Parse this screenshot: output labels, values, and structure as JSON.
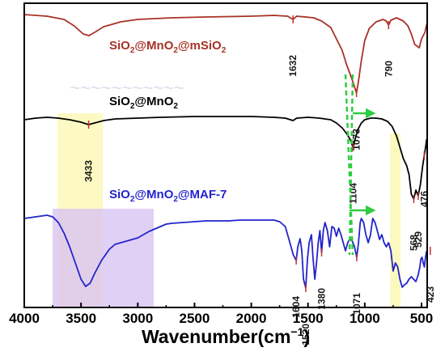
{
  "chart_data": {
    "type": "line",
    "title": "",
    "xlabel": "Wavenumber(cm",
    "xlabel_sup": "−1",
    "xlabel_close": ")",
    "ylabel": "",
    "x_reversed": true,
    "xlim": [
      4000,
      450
    ],
    "xticks": [
      4000,
      3500,
      3000,
      2500,
      2000,
      1500,
      1000,
      500
    ],
    "xtick_labels": [
      "4000",
      "3500",
      "3000",
      "2500",
      "2000",
      "1500",
      "1000",
      "500"
    ],
    "grid": false,
    "series": [
      {
        "name_parts": [
          {
            "t": "SiO",
            "sub": false
          },
          {
            "t": "2",
            "sub": true
          },
          {
            "t": "@MnO",
            "sub": false
          },
          {
            "t": "2",
            "sub": true
          },
          {
            "t": "@mSiO",
            "sub": false
          },
          {
            "t": "2",
            "sub": true
          }
        ],
        "color": "#a83228",
        "points": [
          [
            4000,
            18
          ],
          [
            3800,
            20
          ],
          [
            3650,
            24
          ],
          [
            3560,
            32
          ],
          [
            3480,
            42
          ],
          [
            3430,
            44
          ],
          [
            3380,
            40
          ],
          [
            3300,
            33
          ],
          [
            3150,
            27
          ],
          [
            3000,
            24
          ],
          [
            2700,
            22
          ],
          [
            2400,
            21
          ],
          [
            2000,
            20
          ],
          [
            1800,
            19
          ],
          [
            1680,
            20
          ],
          [
            1632,
            24
          ],
          [
            1600,
            20
          ],
          [
            1450,
            22
          ],
          [
            1380,
            26
          ],
          [
            1300,
            34
          ],
          [
            1250,
            48
          ],
          [
            1200,
            62
          ],
          [
            1160,
            80
          ],
          [
            1120,
            95
          ],
          [
            1100,
            103
          ],
          [
            1073,
            115
          ],
          [
            1055,
            100
          ],
          [
            1030,
            75
          ],
          [
            1000,
            50
          ],
          [
            960,
            35
          ],
          [
            900,
            27
          ],
          [
            840,
            24
          ],
          [
            810,
            26
          ],
          [
            790,
            31
          ],
          [
            770,
            25
          ],
          [
            720,
            22
          ],
          [
            660,
            26
          ],
          [
            620,
            32
          ],
          [
            590,
            42
          ],
          [
            560,
            55
          ],
          [
            520,
            59
          ],
          [
            500,
            48
          ],
          [
            470,
            40
          ],
          [
            455,
            30
          ]
        ],
        "peaks": [
          {
            "x": 1632,
            "label": "1632"
          },
          {
            "x": 1073,
            "label": "1073"
          },
          {
            "x": 790,
            "label": "790"
          }
        ]
      },
      {
        "name_parts": [
          {
            "t": "SiO",
            "sub": false
          },
          {
            "t": "2",
            "sub": true
          },
          {
            "t": "@MnO",
            "sub": false
          },
          {
            "t": "2",
            "sub": true
          }
        ],
        "color": "#000000",
        "points": [
          [
            4000,
            148
          ],
          [
            3900,
            146
          ],
          [
            3800,
            145
          ],
          [
            3700,
            146
          ],
          [
            3600,
            148
          ],
          [
            3500,
            151
          ],
          [
            3433,
            154
          ],
          [
            3380,
            152
          ],
          [
            3300,
            149
          ],
          [
            3200,
            147
          ],
          [
            3000,
            146
          ],
          [
            2800,
            145
          ],
          [
            2500,
            144
          ],
          [
            2200,
            144
          ],
          [
            2000,
            144
          ],
          [
            1800,
            145
          ],
          [
            1700,
            146
          ],
          [
            1632,
            149
          ],
          [
            1600,
            146
          ],
          [
            1500,
            145
          ],
          [
            1400,
            146
          ],
          [
            1300,
            148
          ],
          [
            1250,
            152
          ],
          [
            1200,
            158
          ],
          [
            1160,
            165
          ],
          [
            1130,
            172
          ],
          [
            1104,
            182
          ],
          [
            1085,
            172
          ],
          [
            1060,
            160
          ],
          [
            1030,
            152
          ],
          [
            1000,
            148
          ],
          [
            950,
            146
          ],
          [
            900,
            146
          ],
          [
            850,
            147
          ],
          [
            800,
            150
          ],
          [
            760,
            156
          ],
          [
            720,
            168
          ],
          [
            690,
            182
          ],
          [
            660,
            196
          ],
          [
            630,
            205
          ],
          [
            610,
            216
          ],
          [
            590,
            240
          ],
          [
            568,
            246
          ],
          [
            550,
            235
          ],
          [
            529,
            242
          ],
          [
            510,
            228
          ],
          [
            490,
            205
          ],
          [
            476,
            192
          ],
          [
            462,
            180
          ],
          [
            455,
            172
          ]
        ],
        "peaks": [
          {
            "x": 3433,
            "label": "3433"
          },
          {
            "x": 1104,
            "label": "1104"
          },
          {
            "x": 568,
            "label": "568"
          },
          {
            "x": 529,
            "label": "529"
          },
          {
            "x": 476,
            "label": "476"
          }
        ]
      },
      {
        "name_parts": [
          {
            "t": "SiO",
            "sub": false
          },
          {
            "t": "2",
            "sub": true
          },
          {
            "t": "@MnO",
            "sub": false
          },
          {
            "t": "2",
            "sub": true
          },
          {
            "t": "@MAF-7",
            "sub": false
          }
        ],
        "color": "#2323cc",
        "points": [
          [
            4000,
            270
          ],
          [
            3900,
            268
          ],
          [
            3800,
            266
          ],
          [
            3750,
            268
          ],
          [
            3700,
            275
          ],
          [
            3650,
            288
          ],
          [
            3600,
            305
          ],
          [
            3550,
            325
          ],
          [
            3500,
            345
          ],
          [
            3460,
            354
          ],
          [
            3420,
            350
          ],
          [
            3380,
            338
          ],
          [
            3320,
            322
          ],
          [
            3250,
            308
          ],
          [
            3200,
            302
          ],
          [
            3150,
            300
          ],
          [
            3100,
            298
          ],
          [
            3050,
            296
          ],
          [
            3000,
            294
          ],
          [
            2950,
            290
          ],
          [
            2900,
            286
          ],
          [
            2850,
            283
          ],
          [
            2800,
            280
          ],
          [
            2750,
            277
          ],
          [
            2700,
            276
          ],
          [
            2600,
            275
          ],
          [
            2500,
            274
          ],
          [
            2400,
            273
          ],
          [
            2300,
            273
          ],
          [
            2200,
            273
          ],
          [
            2100,
            272
          ],
          [
            2000,
            272
          ],
          [
            1900,
            272
          ],
          [
            1800,
            272
          ],
          [
            1750,
            274
          ],
          [
            1700,
            280
          ],
          [
            1660,
            300
          ],
          [
            1630,
            315
          ],
          [
            1604,
            322
          ],
          [
            1590,
            305
          ],
          [
            1570,
            295
          ],
          [
            1555,
            310
          ],
          [
            1540,
            345
          ],
          [
            1520,
            356
          ],
          [
            1505,
            320
          ],
          [
            1490,
            300
          ],
          [
            1470,
            290
          ],
          [
            1455,
            320
          ],
          [
            1440,
            345
          ],
          [
            1425,
            325
          ],
          [
            1410,
            300
          ],
          [
            1395,
            285
          ],
          [
            1380,
            312
          ],
          [
            1365,
            285
          ],
          [
            1350,
            275
          ],
          [
            1330,
            285
          ],
          [
            1310,
            305
          ],
          [
            1290,
            280
          ],
          [
            1270,
            282
          ],
          [
            1250,
            292
          ],
          [
            1230,
            282
          ],
          [
            1210,
            290
          ],
          [
            1190,
            300
          ],
          [
            1170,
            310
          ],
          [
            1150,
            300
          ],
          [
            1130,
            295
          ],
          [
            1110,
            298
          ],
          [
            1090,
            305
          ],
          [
            1071,
            318
          ],
          [
            1055,
            300
          ],
          [
            1040,
            275
          ],
          [
            1030,
            270
          ],
          [
            1010,
            275
          ],
          [
            990,
            290
          ],
          [
            970,
            300
          ],
          [
            950,
            290
          ],
          [
            930,
            270
          ],
          [
            910,
            275
          ],
          [
            890,
            285
          ],
          [
            870,
            296
          ],
          [
            850,
            290
          ],
          [
            830,
            300
          ],
          [
            810,
            305
          ],
          [
            790,
            300
          ],
          [
            770,
            310
          ],
          [
            750,
            335
          ],
          [
            730,
            325
          ],
          [
            710,
            330
          ],
          [
            690,
            345
          ],
          [
            670,
            355
          ],
          [
            650,
            352
          ],
          [
            630,
            350
          ],
          [
            610,
            345
          ],
          [
            590,
            342
          ],
          [
            570,
            345
          ],
          [
            550,
            348
          ],
          [
            530,
            340
          ],
          [
            515,
            330
          ],
          [
            505,
            320
          ],
          [
            495,
            318
          ],
          [
            485,
            325
          ],
          [
            475,
            330
          ],
          [
            465,
            318
          ],
          [
            455,
            310
          ]
        ],
        "peaks": [
          {
            "x": 1604,
            "label": "1604"
          },
          {
            "x": 1520,
            "label": "1520"
          },
          {
            "x": 1380,
            "label": "1380"
          },
          {
            "x": 1071,
            "label": "1071"
          },
          {
            "x": 423,
            "label": "423"
          }
        ]
      }
    ]
  }
}
